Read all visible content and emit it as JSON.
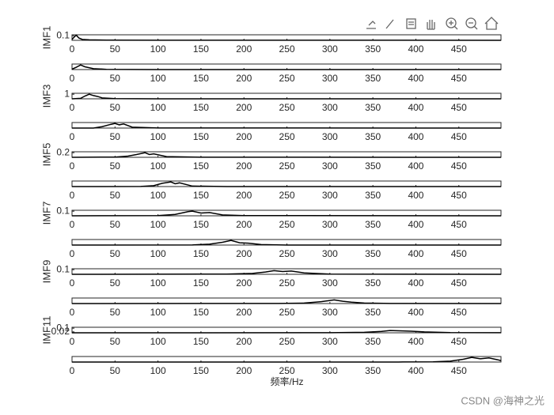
{
  "chart_data": [
    {
      "type": "line",
      "ylabel": "IMF1",
      "color": "#000000",
      "x": [
        0,
        3,
        5,
        8,
        12,
        20,
        40,
        100,
        499
      ],
      "values": [
        0.02,
        0.08,
        0.11,
        0.05,
        0.02,
        0.01,
        0.005,
        0.002,
        0.001
      ],
      "xlim": [
        0,
        499
      ],
      "xticks": [
        0,
        50,
        100,
        150,
        200,
        250,
        300,
        350,
        400,
        450
      ],
      "ylim": [
        0,
        0.12
      ],
      "yticks": [
        0.1
      ]
    },
    {
      "type": "line",
      "color": "#000000",
      "x": [
        0,
        5,
        10,
        15,
        25,
        40,
        100,
        499
      ],
      "values": [
        0.1,
        0.5,
        1,
        0.6,
        0.2,
        0.05,
        0.01,
        0.005
      ],
      "xlim": [
        0,
        499
      ],
      "xticks": [
        0,
        50,
        100,
        150,
        200,
        250,
        300,
        350,
        400,
        450
      ],
      "ylim": [
        0,
        1.2
      ],
      "yticks": []
    },
    {
      "type": "line",
      "ylabel": "IMF3",
      "color": "#000000",
      "x": [
        0,
        10,
        15,
        20,
        25,
        30,
        35,
        50,
        100,
        499
      ],
      "values": [
        0,
        0.1,
        0.6,
        1,
        0.7,
        0.5,
        0.2,
        0.05,
        0.01,
        0
      ],
      "xlim": [
        0,
        499
      ],
      "xticks": [
        0,
        50,
        100,
        150,
        200,
        250,
        300,
        350,
        400,
        450
      ],
      "ylim": [
        0,
        1.2
      ],
      "yticks": [
        1
      ]
    },
    {
      "type": "line",
      "color": "#000000",
      "x": [
        0,
        25,
        35,
        45,
        50,
        55,
        60,
        70,
        100,
        499
      ],
      "values": [
        0,
        0.01,
        0.3,
        0.8,
        1,
        0.7,
        0.9,
        0.2,
        0.02,
        0
      ],
      "xlim": [
        0,
        499
      ],
      "xticks": [
        0,
        50,
        100,
        150,
        200,
        250,
        300,
        350,
        400,
        450
      ],
      "ylim": [
        0,
        1.2
      ],
      "yticks": []
    },
    {
      "type": "line",
      "ylabel": "IMF5",
      "color": "#000000",
      "x": [
        0,
        50,
        65,
        75,
        85,
        90,
        95,
        110,
        150,
        499
      ],
      "values": [
        0,
        0.01,
        0.05,
        0.12,
        0.2,
        0.12,
        0.15,
        0.03,
        0.005,
        0
      ],
      "xlim": [
        0,
        499
      ],
      "xticks": [
        0,
        50,
        100,
        150,
        200,
        250,
        300,
        350,
        400,
        450
      ],
      "ylim": [
        0,
        0.24
      ],
      "yticks": [
        0.2
      ]
    },
    {
      "type": "line",
      "color": "#000000",
      "x": [
        0,
        80,
        95,
        105,
        115,
        120,
        125,
        140,
        180,
        499
      ],
      "values": [
        0,
        0.02,
        0.2,
        0.7,
        1,
        0.6,
        0.8,
        0.1,
        0.01,
        0
      ],
      "xlim": [
        0,
        499
      ],
      "xticks": [
        0,
        50,
        100,
        150,
        200,
        250,
        300,
        350,
        400,
        450
      ],
      "ylim": [
        0,
        1.2
      ],
      "yticks": []
    },
    {
      "type": "line",
      "ylabel": "IMF7",
      "color": "#000000",
      "x": [
        0,
        100,
        120,
        135,
        140,
        150,
        160,
        175,
        200,
        499
      ],
      "values": [
        0,
        0.005,
        0.03,
        0.09,
        0.1,
        0.06,
        0.07,
        0.02,
        0.005,
        0
      ],
      "xlim": [
        0,
        499
      ],
      "xticks": [
        0,
        50,
        100,
        150,
        200,
        250,
        300,
        350,
        400,
        450
      ],
      "ylim": [
        0,
        0.12
      ],
      "yticks": [
        0.1
      ]
    },
    {
      "type": "line",
      "color": "#000000",
      "x": [
        0,
        140,
        160,
        175,
        185,
        195,
        205,
        220,
        250,
        499
      ],
      "values": [
        0,
        0.02,
        0.2,
        0.6,
        1,
        0.5,
        0.4,
        0.1,
        0.01,
        0
      ],
      "xlim": [
        0,
        499
      ],
      "xticks": [
        0,
        50,
        100,
        150,
        200,
        250,
        300,
        350,
        400,
        450
      ],
      "ylim": [
        0,
        1.2
      ],
      "yticks": []
    },
    {
      "type": "line",
      "ylabel": "IMF9",
      "color": "#000000",
      "x": [
        0,
        180,
        210,
        225,
        235,
        245,
        255,
        270,
        300,
        499
      ],
      "values": [
        0,
        0.005,
        0.02,
        0.05,
        0.08,
        0.06,
        0.07,
        0.03,
        0.005,
        0
      ],
      "xlim": [
        0,
        499
      ],
      "xticks": [
        0,
        50,
        100,
        150,
        200,
        250,
        300,
        350,
        400,
        450
      ],
      "ylim": [
        0,
        0.12
      ],
      "yticks": [
        0.1
      ]
    },
    {
      "type": "line",
      "color": "#000000",
      "x": [
        0,
        240,
        270,
        290,
        305,
        315,
        325,
        340,
        370,
        499
      ],
      "values": [
        0,
        0.02,
        0.1,
        0.4,
        0.8,
        0.5,
        0.3,
        0.1,
        0.02,
        0
      ],
      "xlim": [
        0,
        499
      ],
      "xticks": [
        0,
        50,
        100,
        150,
        200,
        250,
        300,
        350,
        400,
        450
      ],
      "ylim": [
        0,
        1.2
      ],
      "yticks": []
    },
    {
      "type": "line",
      "ylabel": "IMF11",
      "color": "#000000",
      "x": [
        0,
        300,
        340,
        360,
        370,
        385,
        395,
        410,
        440,
        499
      ],
      "values": [
        0,
        0.002,
        0.01,
        0.03,
        0.05,
        0.04,
        0.035,
        0.02,
        0.005,
        0.002
      ],
      "xlim": [
        0,
        499
      ],
      "xticks": [
        0,
        50,
        100,
        150,
        200,
        250,
        300,
        350,
        400,
        450
      ],
      "ylim": [
        0,
        0.12
      ],
      "yticks": [
        0.02,
        0.1
      ]
    },
    {
      "type": "line",
      "xlabel": "频率/Hz",
      "color": "#000000",
      "x": [
        0,
        380,
        420,
        440,
        455,
        465,
        475,
        485,
        495,
        499
      ],
      "values": [
        0,
        0.01,
        0.05,
        0.2,
        0.6,
        1,
        0.7,
        0.9,
        0.5,
        0.3
      ],
      "xlim": [
        0,
        499
      ],
      "xticks": [
        0,
        50,
        100,
        150,
        200,
        250,
        300,
        350,
        400,
        450
      ],
      "ylim": [
        0,
        1.2
      ],
      "yticks": []
    }
  ],
  "watermark": "CSDN @海神之光"
}
